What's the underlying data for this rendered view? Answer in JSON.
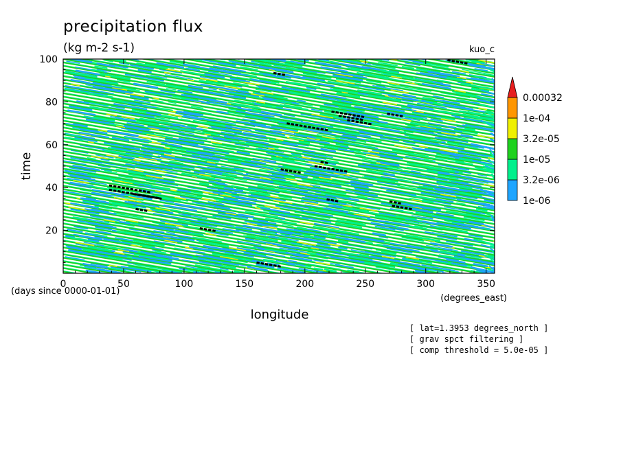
{
  "chart_data": {
    "type": "heatmap",
    "title": "precipitation flux",
    "subtitle": "(kg m-2 s-1)",
    "model_label": "kuo_c",
    "xlabel": "longitude",
    "ylabel": "time",
    "x_units": "(degrees_east)",
    "y_units": "(days since 0000-01-01)",
    "xlim": [
      0,
      357
    ],
    "ylim": [
      0,
      100
    ],
    "x_ticks": [
      "0",
      "50",
      "100",
      "150",
      "200",
      "250",
      "300",
      "350"
    ],
    "y_ticks": [
      "20",
      "40",
      "60",
      "80",
      "100"
    ],
    "colorbar": {
      "levels": [
        "1e-06",
        "3.2e-06",
        "1e-05",
        "3.2e-05",
        "1e-04",
        "0.00032"
      ],
      "colors": [
        "#1ea5ff",
        "#00f08c",
        "#1ed21e",
        "#f0f000",
        "#ff9600",
        "#e61e1e"
      ],
      "extend": "max"
    },
    "field_description": "eastward-propagating precipitation bands tilted across the longitude-time domain",
    "notes": [
      "[ lat=1.3953 degrees_north ]",
      "[ grav spct filtering ]",
      "[ comp threshold = 5.0e-05 ]"
    ]
  }
}
